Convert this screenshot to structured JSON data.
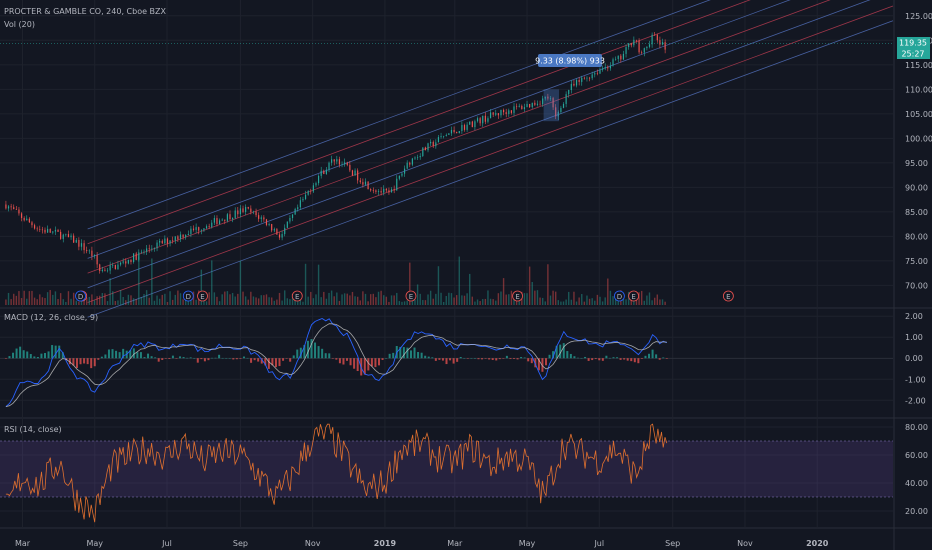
{
  "header": {
    "symbol_title": "PROCTER & GAMBLE CO, 240, Cboe BZX",
    "volume_label": "Vol (20)",
    "macd_label": "MACD (12, 26, close, 9)",
    "rsi_label": "RSI (14, close)"
  },
  "price_badges": {
    "last_price": "119.35",
    "countdown": "25:27"
  },
  "measure_tooltip": "9.33 (8.98%) 933",
  "colors": {
    "background": "#131722",
    "up": "#26a69a",
    "down": "#ef5350",
    "channel_blue": "#5d7fd6",
    "channel_red": "#d8435a",
    "macd_line": "#2962ff",
    "signal_line": "#c9c9c9",
    "rsi_line": "#e0702f",
    "rsi_band": "#7e57c2",
    "badge": "#26a69a",
    "tooltip": "#4a78c2"
  },
  "chart_data": [
    {
      "type": "line",
      "panel": "price",
      "title": "PROCTER & GAMBLE CO, 240, Cboe BZX",
      "x": [
        "2018-02-15",
        "2018-02-28",
        "2018-03-15",
        "2018-03-31",
        "2018-04-15",
        "2018-04-30",
        "2018-05-05",
        "2018-05-20",
        "2018-06-05",
        "2018-06-20",
        "2018-07-05",
        "2018-07-20",
        "2018-08-05",
        "2018-08-20",
        "2018-09-05",
        "2018-09-20",
        "2018-10-05",
        "2018-10-20",
        "2018-11-05",
        "2018-11-20",
        "2018-12-05",
        "2018-12-20",
        "2019-01-05",
        "2019-01-20",
        "2019-02-05",
        "2019-02-20",
        "2019-03-05",
        "2019-03-20",
        "2019-04-05",
        "2019-04-20",
        "2019-05-05",
        "2019-05-20",
        "2019-05-25",
        "2019-06-05",
        "2019-06-20",
        "2019-07-05",
        "2019-07-20",
        "2019-07-31",
        "2019-08-05",
        "2019-08-15",
        "2019-08-27"
      ],
      "values": [
        86.5,
        84.0,
        81.5,
        80.5,
        79.0,
        76.0,
        73.0,
        74.0,
        76.0,
        78.0,
        79.5,
        81.0,
        82.5,
        84.0,
        85.5,
        83.5,
        80.0,
        86.0,
        92.0,
        96.0,
        93.0,
        90.0,
        88.5,
        95.0,
        98.0,
        100.5,
        102.0,
        103.5,
        105.0,
        106.0,
        107.0,
        108.5,
        104.0,
        110.0,
        112.5,
        114.5,
        116.5,
        121.0,
        116.5,
        121.0,
        118.0
      ],
      "ylim": [
        66,
        127
      ],
      "yticks": [
        70.0,
        75.0,
        80.0,
        85.0,
        90.0,
        95.0,
        100.0,
        105.0,
        110.0,
        115.0,
        120.0,
        125.0
      ],
      "last_value": 119.35,
      "earnings_markers": [
        "2018-04-20",
        "2018-07-31",
        "2018-10-19",
        "2019-01-23",
        "2019-04-23",
        "2019-07-30",
        "2019-10-18"
      ],
      "dividend_markers": [
        "2018-04-19",
        "2018-07-19",
        "2019-07-18"
      ],
      "measure": {
        "start": "2019-05-15",
        "end": "2019-05-28",
        "change": 9.33,
        "percent": 8.98,
        "bars": 933
      }
    },
    {
      "type": "bar",
      "panel": "volume",
      "title": "Vol (20)"
    },
    {
      "type": "line",
      "panel": "macd",
      "title": "MACD (12, 26, close, 9)",
      "x": [
        "2018-02-15",
        "2018-03-01",
        "2018-03-15",
        "2018-04-01",
        "2018-04-15",
        "2018-05-01",
        "2018-05-15",
        "2018-06-01",
        "2018-06-15",
        "2018-07-01",
        "2018-07-15",
        "2018-08-01",
        "2018-08-15",
        "2018-09-01",
        "2018-09-15",
        "2018-10-01",
        "2018-10-15",
        "2018-11-01",
        "2018-11-15",
        "2018-12-01",
        "2018-12-15",
        "2019-01-01",
        "2019-01-15",
        "2019-02-01",
        "2019-02-15",
        "2019-03-01",
        "2019-03-15",
        "2019-04-01",
        "2019-04-15",
        "2019-05-01",
        "2019-05-15",
        "2019-06-01",
        "2019-06-15",
        "2019-07-01",
        "2019-07-15",
        "2019-08-01",
        "2019-08-15",
        "2019-08-27"
      ],
      "values": [
        -2.3,
        -1.0,
        -1.2,
        0.4,
        -0.8,
        -1.6,
        -0.5,
        0.5,
        0.7,
        0.4,
        0.8,
        0.3,
        0.6,
        0.5,
        0.2,
        -1.0,
        -0.8,
        1.6,
        1.9,
        1.0,
        -0.8,
        -1.0,
        0.6,
        1.4,
        0.9,
        0.5,
        0.8,
        0.4,
        0.6,
        0.5,
        -1.0,
        1.2,
        0.9,
        0.6,
        0.9,
        0.2,
        1.0,
        0.6
      ],
      "ylim": [
        -2.7,
        2.2
      ],
      "yticks": [
        2.0,
        1.0,
        0.0,
        -1.0,
        -2.0
      ]
    },
    {
      "type": "line",
      "panel": "rsi",
      "title": "RSI (14, close)",
      "x": [
        "2018-02-15",
        "2018-03-01",
        "2018-03-15",
        "2018-04-01",
        "2018-04-15",
        "2018-05-01",
        "2018-05-15",
        "2018-06-01",
        "2018-06-15",
        "2018-07-01",
        "2018-07-15",
        "2018-08-01",
        "2018-08-15",
        "2018-09-01",
        "2018-09-15",
        "2018-10-01",
        "2018-10-15",
        "2018-11-01",
        "2018-11-15",
        "2018-12-01",
        "2018-12-15",
        "2019-01-01",
        "2019-01-15",
        "2019-02-01",
        "2019-02-15",
        "2019-03-01",
        "2019-03-15",
        "2019-04-01",
        "2019-04-15",
        "2019-05-01",
        "2019-05-15",
        "2019-06-01",
        "2019-06-15",
        "2019-07-01",
        "2019-07-15",
        "2019-08-01",
        "2019-08-15",
        "2019-08-27"
      ],
      "values": [
        22,
        45,
        38,
        55,
        30,
        18,
        52,
        60,
        65,
        58,
        70,
        55,
        62,
        60,
        48,
        30,
        45,
        72,
        75,
        55,
        35,
        40,
        65,
        68,
        58,
        55,
        66,
        52,
        60,
        55,
        30,
        68,
        62,
        56,
        65,
        45,
        78,
        60
      ],
      "ylim": [
        10,
        85
      ],
      "yticks": [
        80.0,
        60.0,
        40.0,
        20.0
      ],
      "bands": [
        30,
        70
      ]
    }
  ],
  "x_axis": {
    "ticks": [
      {
        "label": "Mar",
        "date": "2018-03-01"
      },
      {
        "label": "May",
        "date": "2018-05-01"
      },
      {
        "label": "Jul",
        "date": "2018-07-01"
      },
      {
        "label": "Sep",
        "date": "2018-09-01"
      },
      {
        "label": "Nov",
        "date": "2018-11-01"
      },
      {
        "label": "2019",
        "date": "2019-01-01"
      },
      {
        "label": "Mar",
        "date": "2019-03-01"
      },
      {
        "label": "May",
        "date": "2019-05-01"
      },
      {
        "label": "Jul",
        "date": "2019-07-01"
      },
      {
        "label": "Sep",
        "date": "2019-09-01"
      },
      {
        "label": "Nov",
        "date": "2019-11-01"
      },
      {
        "label": "2020",
        "date": "2020-01-01"
      }
    ],
    "range": [
      "2018-02-10",
      "2020-03-05"
    ]
  }
}
